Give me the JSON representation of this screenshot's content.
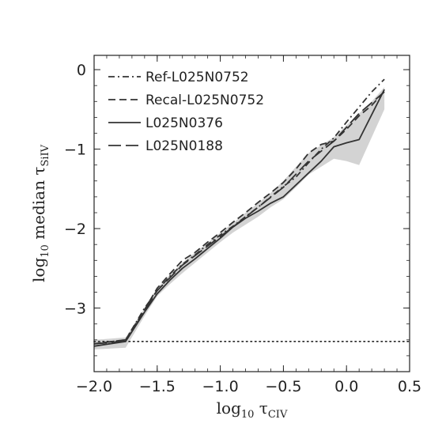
{
  "chart_data": {
    "type": "line",
    "xlabel": "log10 τCIV",
    "ylabel": "log10 median τSiIV",
    "xlim": [
      -2.0,
      0.5
    ],
    "ylim": [
      -3.8,
      0.18
    ],
    "x_ticks": [
      -2.0,
      -1.5,
      -1.0,
      -0.5,
      0.0,
      0.5
    ],
    "x_tick_labels": [
      "−2.0",
      "−1.5",
      "−1.0",
      "−0.5",
      "0.0",
      "0.5"
    ],
    "y_ticks": [
      0,
      -1,
      -2,
      -3
    ],
    "y_tick_labels": [
      "0",
      "−1",
      "−2",
      "−3"
    ],
    "grid": false,
    "legend_position": "top-left",
    "series": [
      {
        "name": "Ref-L025N0752",
        "style": "dashdot",
        "color": "#333333",
        "x": [
          -2.0,
          -1.75,
          -1.6,
          -1.5,
          -1.4,
          -1.3,
          -1.2,
          -1.1,
          -1.0,
          -0.9,
          -0.8,
          -0.7,
          -0.6,
          -0.5,
          -0.4,
          -0.3,
          -0.2,
          -0.1,
          0.0,
          0.1,
          0.2,
          0.3
        ],
        "values": [
          -3.45,
          -3.4,
          -3.0,
          -2.78,
          -2.6,
          -2.45,
          -2.33,
          -2.2,
          -2.08,
          -1.97,
          -1.85,
          -1.73,
          -1.6,
          -1.47,
          -1.35,
          -1.17,
          -1.0,
          -0.86,
          -0.66,
          -0.47,
          -0.28,
          -0.12
        ]
      },
      {
        "name": "Recal-L025N0752",
        "style": "dashed",
        "color": "#333333",
        "x": [
          -2.0,
          -1.75,
          -1.6,
          -1.5,
          -1.4,
          -1.3,
          -1.2,
          -1.1,
          -1.0,
          -0.9,
          -0.8,
          -0.7,
          -0.6,
          -0.5,
          -0.4,
          -0.3,
          -0.2,
          -0.1,
          0.0,
          0.1,
          0.2,
          0.3
        ],
        "values": [
          -3.45,
          -3.4,
          -3.02,
          -2.75,
          -2.57,
          -2.4,
          -2.3,
          -2.17,
          -2.05,
          -1.92,
          -1.8,
          -1.67,
          -1.55,
          -1.42,
          -1.25,
          -1.05,
          -0.94,
          -0.9,
          -0.75,
          -0.58,
          -0.45,
          -0.27
        ]
      },
      {
        "name": "L025N0376",
        "style": "solid",
        "color": "#333333",
        "x": [
          -2.0,
          -1.75,
          -1.6,
          -1.5,
          -1.4,
          -1.3,
          -1.2,
          -1.1,
          -1.0,
          -0.9,
          -0.8,
          -0.7,
          -0.6,
          -0.5,
          -0.4,
          -0.3,
          -0.2,
          -0.1,
          0.0,
          0.1,
          0.3
        ],
        "values": [
          -3.48,
          -3.42,
          -3.05,
          -2.82,
          -2.65,
          -2.5,
          -2.38,
          -2.25,
          -2.12,
          -1.98,
          -1.87,
          -1.78,
          -1.68,
          -1.6,
          -1.45,
          -1.3,
          -1.15,
          -0.97,
          -0.92,
          -0.88,
          -0.25
        ]
      },
      {
        "name": "L025N0188",
        "style": "longdash",
        "color": "#333333",
        "x": [
          -2.0,
          -1.75,
          -1.5,
          -1.3,
          -1.1,
          -0.9,
          -0.7,
          -0.5,
          -0.3,
          -0.1,
          0.1,
          0.3
        ],
        "values": [
          -3.45,
          -3.42,
          -2.78,
          -2.46,
          -2.22,
          -1.98,
          -1.73,
          -1.48,
          -1.15,
          -0.9,
          -0.55,
          -0.28
        ]
      }
    ],
    "horizontal_reference": {
      "y": -3.42,
      "style": "dotted"
    },
    "scatter_band": {
      "x": [
        -2.0,
        -1.75,
        -1.6,
        -1.5,
        -1.4,
        -1.3,
        -1.2,
        -1.1,
        -1.0,
        -0.9,
        -0.8,
        -0.7,
        -0.6,
        -0.5,
        -0.4,
        -0.3,
        -0.2,
        -0.1,
        0.0,
        0.1,
        0.2,
        0.3
      ],
      "upper": [
        -3.4,
        -3.37,
        -3.0,
        -2.75,
        -2.58,
        -2.43,
        -2.3,
        -2.18,
        -2.05,
        -1.93,
        -1.8,
        -1.68,
        -1.55,
        -1.4,
        -1.22,
        -1.05,
        -0.95,
        -0.85,
        -0.7,
        -0.55,
        -0.4,
        -0.22
      ],
      "lower": [
        -3.52,
        -3.5,
        -3.1,
        -2.85,
        -2.7,
        -2.56,
        -2.43,
        -2.3,
        -2.17,
        -2.05,
        -1.95,
        -1.85,
        -1.73,
        -1.63,
        -1.48,
        -1.32,
        -1.22,
        -1.12,
        -1.15,
        -1.2,
        -0.85,
        -0.5
      ],
      "color": "#d3d3d3"
    }
  }
}
